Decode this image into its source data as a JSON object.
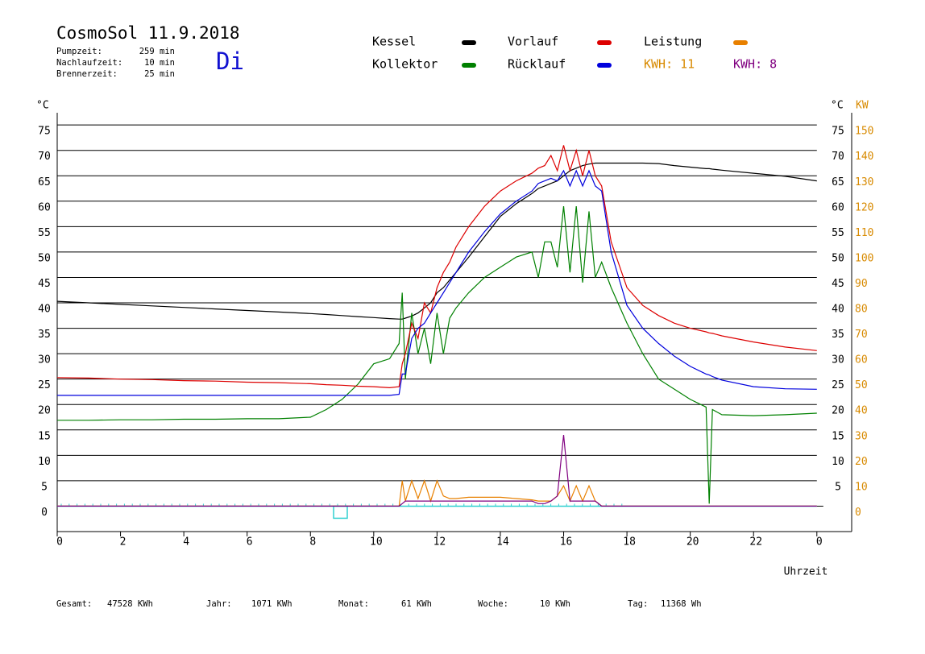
{
  "chart_data": {
    "type": "line",
    "title": "CosmoSol 11.9.2018",
    "info": [
      {
        "label": "Pumpzeit:",
        "value": "259 min"
      },
      {
        "label": "Nachlaufzeit:",
        "value": "10 min"
      },
      {
        "label": "Brennerzeit:",
        "value": "25 min"
      }
    ],
    "weekday": "Di",
    "kwh_labels": [
      {
        "text": "KWH: 11",
        "color": "#d88a00"
      },
      {
        "text": "KWH: 8",
        "color": "#800080"
      }
    ],
    "y_label": "°C",
    "y2_labels": [
      "°C",
      "KW"
    ],
    "x_label": "Uhrzeit",
    "footer": [
      {
        "label": "Gesamt:",
        "value": "47528 KWh"
      },
      {
        "label": "Jahr:",
        "value": "1071 KWh"
      },
      {
        "label": "Monat:",
        "value": "61 KWh"
      },
      {
        "label": "Woche:",
        "value": "10 KWh"
      },
      {
        "label": "Tag:",
        "value": "11368 Wh"
      }
    ],
    "xlim": [
      0,
      25.1
    ],
    "xticks": [
      0,
      2,
      4,
      6,
      8,
      10,
      12,
      14,
      16,
      18,
      20,
      22,
      {
        "value": 24,
        "label": "0"
      }
    ],
    "ylim": [
      -5,
      77.4
    ],
    "yticks": [
      0,
      5,
      10,
      15,
      20,
      25,
      30,
      35,
      40,
      45,
      50,
      55,
      60,
      65,
      70,
      75
    ],
    "y2lim": [
      -10,
      154.8
    ],
    "y2ticks": [
      0,
      10,
      20,
      30,
      40,
      50,
      60,
      70,
      80,
      90,
      100,
      110,
      120,
      130,
      140,
      150
    ],
    "grid": true,
    "x": [
      0,
      1,
      2,
      3,
      4,
      5,
      6,
      7,
      8,
      8.5,
      9,
      9.5,
      10,
      10.5,
      10.8,
      10.9,
      11,
      11.2,
      11.4,
      11.6,
      11.8,
      12,
      12.2,
      12.4,
      12.6,
      13,
      13.5,
      14,
      14.5,
      15,
      15.2,
      15.4,
      15.6,
      15.8,
      16,
      16.2,
      16.4,
      16.6,
      16.8,
      17,
      17.2,
      17.5,
      18,
      18.5,
      19,
      19.5,
      20,
      20.5,
      20.6,
      20.7,
      21,
      22,
      23,
      24
    ],
    "series": [
      {
        "name": "Kessel",
        "color": "#000000",
        "values": [
          40.3,
          40,
          39.7,
          39.4,
          39.1,
          38.8,
          38.5,
          38.2,
          37.9,
          37.7,
          37.5,
          37.3,
          37.1,
          36.9,
          36.8,
          36.8,
          37,
          37.4,
          38,
          39,
          40,
          42,
          43,
          44.5,
          46,
          49,
          53,
          57,
          59.5,
          61.5,
          62.5,
          63,
          63.5,
          64,
          65,
          66,
          66.5,
          67,
          67.3,
          67.5,
          67.5,
          67.5,
          67.5,
          67.5,
          67.4,
          67,
          66.7,
          66.4,
          66.4,
          66.3,
          66.1,
          65.5,
          64.9,
          64
        ]
      },
      {
        "name": "Kollektor",
        "color": "#008000",
        "values": [
          16.9,
          16.9,
          17,
          17,
          17.1,
          17.1,
          17.2,
          17.2,
          17.5,
          19,
          21,
          24,
          28,
          29,
          32,
          42,
          25,
          38,
          30,
          35,
          28,
          38,
          30,
          37,
          39,
          42,
          45,
          47,
          49,
          50,
          45,
          52,
          52,
          47,
          59,
          46,
          59,
          44,
          58,
          45,
          48,
          43,
          36,
          30,
          25,
          23,
          21,
          19.5,
          0.5,
          19,
          18,
          17.8,
          18,
          18.3
        ]
      },
      {
        "name": "Vorlauf",
        "color": "#dd0000",
        "values": [
          25.3,
          25.2,
          25,
          24.9,
          24.7,
          24.6,
          24.4,
          24.3,
          24.1,
          23.9,
          23.8,
          23.6,
          23.5,
          23.3,
          23.5,
          28,
          30,
          36,
          33,
          40,
          38,
          43,
          46,
          48,
          51,
          55,
          59,
          62,
          64,
          65.5,
          66.5,
          67,
          69,
          66,
          71,
          66,
          70,
          65,
          70,
          65,
          63,
          52,
          43,
          39.5,
          37.5,
          36,
          35,
          34.3,
          34.1,
          34,
          33.5,
          32.3,
          31.3,
          30.6
        ]
      },
      {
        "name": "Rücklauf",
        "color": "#0000dd",
        "values": [
          21.8,
          21.8,
          21.8,
          21.8,
          21.8,
          21.8,
          21.8,
          21.8,
          21.8,
          21.8,
          21.8,
          21.8,
          21.8,
          21.8,
          22,
          26,
          26,
          33,
          35,
          36,
          38,
          40,
          42,
          44,
          46,
          50,
          54,
          57.5,
          60,
          62,
          63.5,
          64,
          64.5,
          64,
          66,
          63,
          66,
          63,
          66,
          63,
          62,
          50,
          39.5,
          35,
          32,
          29.5,
          27.5,
          26,
          25.8,
          25.5,
          24.8,
          23.5,
          23.1,
          23
        ]
      },
      {
        "name": "Leistung",
        "color": "#e88000",
        "axis": "y2",
        "values": [
          0,
          0,
          0,
          0,
          0,
          0,
          0,
          0,
          0,
          0,
          0,
          0,
          0,
          0,
          0,
          10,
          2,
          10,
          3,
          10,
          2,
          10,
          4,
          3,
          3,
          3.5,
          3.5,
          3.5,
          3,
          2.5,
          2,
          2,
          2,
          4,
          8,
          2,
          8,
          2,
          8,
          2,
          0,
          0,
          0,
          0,
          0,
          0,
          0,
          0,
          0,
          0,
          0,
          0,
          0,
          0
        ]
      },
      {
        "color": "#800080",
        "axis": "y2",
        "values": [
          0,
          0,
          0,
          0,
          0,
          0,
          0,
          0,
          0,
          0,
          0,
          0,
          0,
          0,
          0,
          1,
          2,
          2,
          2,
          2,
          2,
          2,
          2,
          2,
          2,
          2,
          2,
          2,
          2,
          2,
          1,
          1,
          2,
          4,
          28,
          2,
          2,
          2,
          2,
          2,
          0,
          0,
          0,
          0,
          0,
          0,
          0,
          0,
          0,
          0,
          0,
          0,
          0,
          0
        ]
      }
    ]
  }
}
